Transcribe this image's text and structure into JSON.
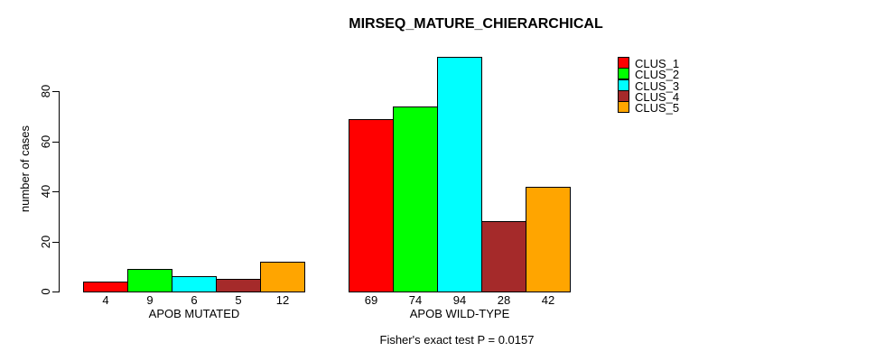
{
  "chart_data": {
    "type": "bar",
    "title": "MIRSEQ_MATURE_CHIERARCHICAL",
    "ylabel": "number of cases",
    "xlabel": "",
    "yticks": [
      0,
      20,
      40,
      60,
      80
    ],
    "ylim": [
      0,
      97
    ],
    "grid": false,
    "legend_position": "top-right",
    "series": [
      "CLUS_1",
      "CLUS_2",
      "CLUS_3",
      "CLUS_4",
      "CLUS_5"
    ],
    "colors": [
      "#ff0000",
      "#00ff00",
      "#00ffff",
      "#a52a2a",
      "#ffa500"
    ],
    "groups": [
      {
        "label": "APOB MUTATED",
        "values": [
          4,
          9,
          6,
          5,
          12
        ]
      },
      {
        "label": "APOB WILD-TYPE",
        "values": [
          69,
          74,
          94,
          28,
          42
        ]
      }
    ],
    "bar_value_labels": true,
    "footnote": "Fisher's exact test P = 0.0157"
  }
}
